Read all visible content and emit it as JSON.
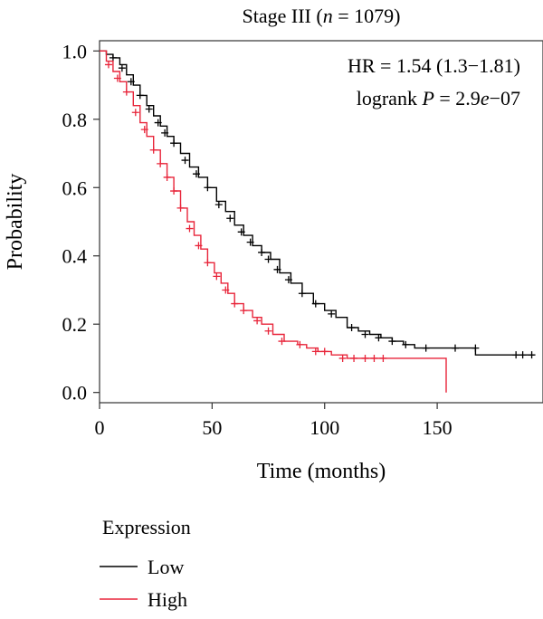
{
  "chart_data": {
    "type": "line",
    "subtype": "kaplan-meier",
    "title": {
      "prefix": "Stage III (",
      "italic": "n",
      "suffix": " = 1079)"
    },
    "xlabel": "Time (months)",
    "ylabel": "Probability",
    "xlim": [
      0,
      197
    ],
    "ylim": [
      -0.03,
      1.03
    ],
    "x_ticks": [
      0,
      50,
      100,
      150
    ],
    "x_tick_labels": [
      "0",
      "50",
      "100",
      "150"
    ],
    "y_ticks": [
      0.0,
      0.2,
      0.4,
      0.6,
      0.8,
      1.0
    ],
    "y_tick_labels": [
      "0.0",
      "0.2",
      "0.4",
      "0.6",
      "0.8",
      "1.0"
    ],
    "grid": false,
    "annotations": {
      "hr": "HR = 1.54 (1.3−1.81)",
      "logrank_prefix": "logrank ",
      "logrank_p": "P",
      "logrank_mid": " = 2.9",
      "logrank_e": "e",
      "logrank_suffix": "−07"
    },
    "legend": {
      "title": "Expression",
      "position": "bottom-left",
      "entries": [
        "Low",
        "High"
      ]
    },
    "series": [
      {
        "name": "Low",
        "color": "#000000",
        "steps": [
          [
            0,
            1.0
          ],
          [
            3,
            0.99
          ],
          [
            6,
            0.98
          ],
          [
            9,
            0.96
          ],
          [
            12,
            0.93
          ],
          [
            15,
            0.9
          ],
          [
            18,
            0.87
          ],
          [
            21,
            0.84
          ],
          [
            24,
            0.81
          ],
          [
            27,
            0.78
          ],
          [
            30,
            0.75
          ],
          [
            33,
            0.73
          ],
          [
            36,
            0.7
          ],
          [
            40,
            0.66
          ],
          [
            44,
            0.63
          ],
          [
            48,
            0.6
          ],
          [
            52,
            0.56
          ],
          [
            56,
            0.53
          ],
          [
            60,
            0.49
          ],
          [
            64,
            0.46
          ],
          [
            68,
            0.43
          ],
          [
            72,
            0.41
          ],
          [
            76,
            0.39
          ],
          [
            80,
            0.35
          ],
          [
            85,
            0.32
          ],
          [
            90,
            0.29
          ],
          [
            95,
            0.26
          ],
          [
            100,
            0.24
          ],
          [
            105,
            0.22
          ],
          [
            110,
            0.19
          ],
          [
            115,
            0.18
          ],
          [
            120,
            0.17
          ],
          [
            125,
            0.16
          ],
          [
            130,
            0.15
          ],
          [
            135,
            0.14
          ],
          [
            140,
            0.13
          ],
          [
            167,
            0.11
          ],
          [
            193,
            0.11
          ]
        ],
        "censors": [
          [
            6,
            0.98
          ],
          [
            10,
            0.95
          ],
          [
            14,
            0.91
          ],
          [
            18,
            0.87
          ],
          [
            22,
            0.83
          ],
          [
            26,
            0.79
          ],
          [
            29,
            0.76
          ],
          [
            33,
            0.73
          ],
          [
            38,
            0.68
          ],
          [
            43,
            0.64
          ],
          [
            48,
            0.6
          ],
          [
            53,
            0.55
          ],
          [
            58,
            0.51
          ],
          [
            63,
            0.47
          ],
          [
            67,
            0.44
          ],
          [
            72,
            0.41
          ],
          [
            75,
            0.39
          ],
          [
            79,
            0.36
          ],
          [
            84,
            0.33
          ],
          [
            90,
            0.29
          ],
          [
            96,
            0.26
          ],
          [
            103,
            0.23
          ],
          [
            112,
            0.19
          ],
          [
            118,
            0.17
          ],
          [
            124,
            0.16
          ],
          [
            130,
            0.15
          ],
          [
            136,
            0.14
          ],
          [
            145,
            0.13
          ],
          [
            158,
            0.13
          ],
          [
            167,
            0.13
          ],
          [
            185,
            0.11
          ],
          [
            188,
            0.11
          ],
          [
            192,
            0.11
          ]
        ]
      },
      {
        "name": "High",
        "color": "#e8253a",
        "steps": [
          [
            0,
            1.0
          ],
          [
            3,
            0.97
          ],
          [
            6,
            0.94
          ],
          [
            9,
            0.91
          ],
          [
            12,
            0.88
          ],
          [
            15,
            0.84
          ],
          [
            18,
            0.79
          ],
          [
            21,
            0.75
          ],
          [
            24,
            0.71
          ],
          [
            27,
            0.67
          ],
          [
            30,
            0.63
          ],
          [
            33,
            0.59
          ],
          [
            36,
            0.54
          ],
          [
            39,
            0.5
          ],
          [
            42,
            0.46
          ],
          [
            45,
            0.42
          ],
          [
            48,
            0.38
          ],
          [
            51,
            0.35
          ],
          [
            54,
            0.32
          ],
          [
            57,
            0.29
          ],
          [
            60,
            0.26
          ],
          [
            64,
            0.24
          ],
          [
            68,
            0.22
          ],
          [
            72,
            0.2
          ],
          [
            77,
            0.17
          ],
          [
            82,
            0.15
          ],
          [
            88,
            0.14
          ],
          [
            92,
            0.13
          ],
          [
            97,
            0.12
          ],
          [
            103,
            0.11
          ],
          [
            110,
            0.1
          ],
          [
            154,
            0.1
          ],
          [
            154,
            0.0
          ]
        ],
        "censors": [
          [
            4,
            0.96
          ],
          [
            8,
            0.92
          ],
          [
            12,
            0.88
          ],
          [
            16,
            0.82
          ],
          [
            20,
            0.77
          ],
          [
            24,
            0.71
          ],
          [
            27,
            0.67
          ],
          [
            30,
            0.63
          ],
          [
            33,
            0.59
          ],
          [
            36,
            0.54
          ],
          [
            40,
            0.48
          ],
          [
            44,
            0.43
          ],
          [
            48,
            0.38
          ],
          [
            52,
            0.34
          ],
          [
            56,
            0.3
          ],
          [
            60,
            0.26
          ],
          [
            64,
            0.24
          ],
          [
            70,
            0.21
          ],
          [
            75,
            0.18
          ],
          [
            81,
            0.15
          ],
          [
            89,
            0.14
          ],
          [
            96,
            0.12
          ],
          [
            100,
            0.12
          ],
          [
            108,
            0.1
          ],
          [
            113,
            0.1
          ],
          [
            118,
            0.1
          ],
          [
            122,
            0.1
          ],
          [
            126,
            0.1
          ]
        ]
      }
    ]
  }
}
